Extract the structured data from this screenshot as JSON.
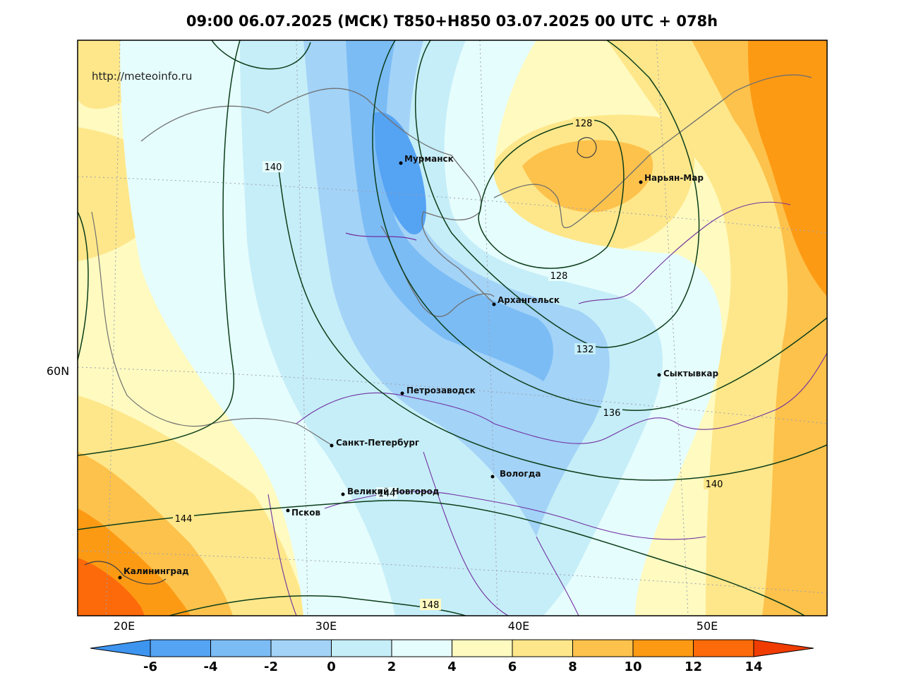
{
  "title": "09:00 06.07.2025 (МСК) T850+H850 03.07.2025 00 UTC + 078h",
  "source_url": "http://meteoinfo.ru",
  "lat_labels": [
    {
      "text": "60N"
    }
  ],
  "lon_labels": [
    {
      "text": "20E"
    },
    {
      "text": "30E"
    },
    {
      "text": "40E"
    },
    {
      "text": "50E"
    }
  ],
  "cities": [
    {
      "name": "Мурманск"
    },
    {
      "name": "Нарьян-Мар"
    },
    {
      "name": "Архангельск"
    },
    {
      "name": "Сыктывкар"
    },
    {
      "name": "Петрозаводск"
    },
    {
      "name": "Санкт-Петербург"
    },
    {
      "name": "Вологда"
    },
    {
      "name": "Великий Новгород"
    },
    {
      "name": "Псков"
    },
    {
      "name": "Калининград"
    }
  ],
  "contour_labels": [
    "128",
    "128",
    "132",
    "136",
    "140",
    "140",
    "144",
    "144",
    "148"
  ],
  "colorbar": {
    "ticks": [
      "-6",
      "-4",
      "-2",
      "0",
      "2",
      "4",
      "6",
      "8",
      "10",
      "12",
      "14"
    ],
    "colors": [
      "#3d95f0",
      "#55a3f3",
      "#7bbcf5",
      "#a3d3f7",
      "#c6eef8",
      "#e6fdfd",
      "#fefac0",
      "#fee78a",
      "#fdc24c",
      "#fd9a14",
      "#fd6a0a",
      "#f03c00"
    ]
  }
}
